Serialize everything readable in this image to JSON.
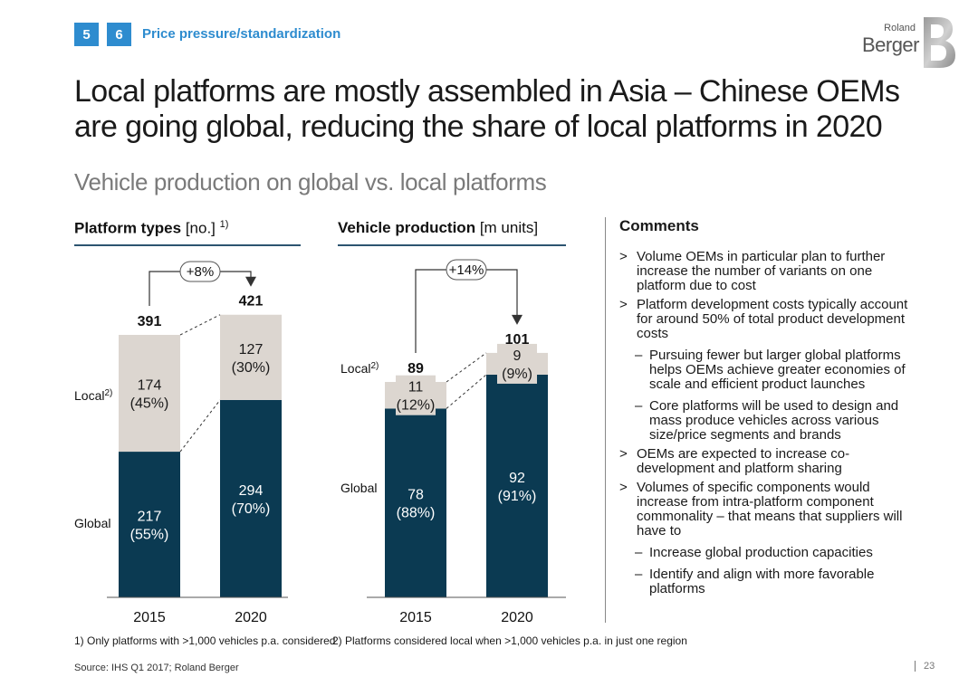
{
  "header": {
    "badges": [
      "5",
      "6"
    ],
    "section_title": "Price pressure/standardization",
    "logo_small": "Roland",
    "logo_big": "Berger"
  },
  "title": "Local platforms are mostly assembled in Asia – Chinese OEMs are going global, reducing the share of local platforms in 2020",
  "subtitle": "Vehicle production on global vs. local platforms",
  "colors": {
    "global": "#0b3a52",
    "local": "#dcd6d0",
    "accent": "#2e8ccf",
    "rule": "#2c5470"
  },
  "chart_data": [
    {
      "type": "bar",
      "title_bold": "Platform types",
      "title_unit": "[no.]",
      "title_note": "1)",
      "categories": [
        "2015",
        "2020"
      ],
      "series": [
        {
          "name": "Global",
          "values": [
            217,
            294
          ],
          "labels": [
            "217\n(55%)",
            "294\n(70%)"
          ]
        },
        {
          "name": "Local",
          "note": "2)",
          "values": [
            174,
            127
          ],
          "labels": [
            "174\n(45%)",
            "127\n(30%)"
          ]
        }
      ],
      "totals": [
        "391",
        "421"
      ],
      "growth": "+8%",
      "ylim": [
        0,
        500
      ]
    },
    {
      "type": "bar",
      "title_bold": "Vehicle production",
      "title_unit": "[m units]",
      "title_note": "",
      "categories": [
        "2015",
        "2020"
      ],
      "series": [
        {
          "name": "Global",
          "values": [
            78,
            92
          ],
          "labels": [
            "78\n(88%)",
            "92\n(91%)"
          ]
        },
        {
          "name": "Local",
          "note": "2)",
          "values": [
            11,
            9
          ],
          "labels": [
            "11\n(12%)",
            "9\n(9%)"
          ]
        }
      ],
      "totals": [
        "89",
        "101"
      ],
      "growth": "+14%",
      "ylim": [
        0,
        120
      ]
    }
  ],
  "comments": {
    "title": "Comments",
    "items": [
      {
        "mark": ">",
        "level": 0,
        "text": "Volume OEMs in particular plan to further increase the number of variants on one platform due to cost"
      },
      {
        "mark": ">",
        "level": 0,
        "text": "Platform development costs typically account for around 50% of total product development costs"
      },
      {
        "mark": "–",
        "level": 1,
        "text": "Pursuing fewer but larger global platforms helps OEMs achieve greater economies of scale and efficient product launches"
      },
      {
        "mark": "–",
        "level": 1,
        "text": "Core platforms will be used to design and mass produce vehicles across various size/price segments and brands"
      },
      {
        "mark": ">",
        "level": 0,
        "text": "OEMs are expected to increase co-development and platform sharing"
      },
      {
        "mark": ">",
        "level": 0,
        "text": "Volumes of specific components would increase from intra-platform component commonality – that means that suppliers will have to"
      },
      {
        "mark": "–",
        "level": 1,
        "text": "Increase global production capacities"
      },
      {
        "mark": "–",
        "level": 1,
        "text": "Identify and align with more favorable platforms"
      }
    ]
  },
  "footnotes": {
    "note1": "1) Only platforms with >1,000 vehicles p.a. considered",
    "note2": "2) Platforms considered local when >1,000 vehicles p.a. in just one region"
  },
  "source": "Source: IHS Q1 2017; Roland Berger",
  "page_number": "23"
}
